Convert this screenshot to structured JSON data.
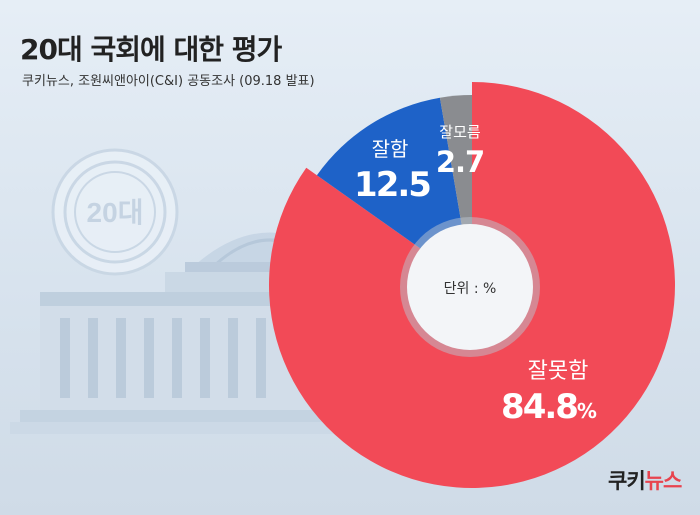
{
  "header": {
    "title": "20대 국회에 대한 평가",
    "subtitle": "쿠키뉴스, 조원씨앤아이(C&I) 공동조사 (09.18 발표)"
  },
  "emblem_text": "20대",
  "center_label": "단위 : %",
  "logo": {
    "part1": "쿠키",
    "part2": "뉴스"
  },
  "colors": {
    "bad": "#f24a57",
    "good": "#1e62c8",
    "unknown": "#8a8c90",
    "background": "#dde7f1"
  },
  "chart_data": {
    "type": "pie",
    "title": "20대 국회에 대한 평가",
    "unit": "%",
    "categories": [
      "잘못함",
      "잘함",
      "잘모름"
    ],
    "values": [
      84.8,
      12.5,
      2.7
    ],
    "labels": [
      {
        "name": "잘못함",
        "value": "84.8",
        "suffix": "%"
      },
      {
        "name": "잘함",
        "value": "12.5",
        "suffix": ""
      },
      {
        "name": "잘모름",
        "value": "2.7",
        "suffix": ""
      }
    ]
  }
}
